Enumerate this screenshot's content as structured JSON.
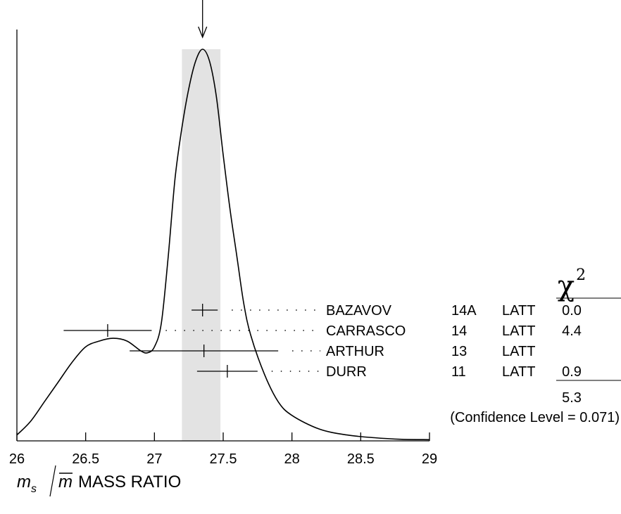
{
  "chart_data": {
    "type": "ideogram",
    "xlim": [
      26,
      29
    ],
    "ticks": {
      "major": [
        26,
        26.5,
        27,
        27.5,
        28,
        28.5,
        29
      ],
      "major_labels": [
        "26",
        "26.5",
        "27",
        "27.5",
        "28",
        "28.5",
        "29"
      ]
    },
    "xlabel": {
      "numerator": "m",
      "numerator_sub": "s",
      "denominator": "m",
      "text": "MASS RATIO"
    },
    "average": {
      "value": 27.35,
      "band": [
        27.2,
        27.48
      ]
    },
    "ideogram_curve": [
      [
        26.0,
        0.015
      ],
      [
        26.1,
        0.05
      ],
      [
        26.2,
        0.1
      ],
      [
        26.3,
        0.15
      ],
      [
        26.4,
        0.2
      ],
      [
        26.5,
        0.24
      ],
      [
        26.6,
        0.255
      ],
      [
        26.7,
        0.262
      ],
      [
        26.8,
        0.255
      ],
      [
        26.9,
        0.23
      ],
      [
        26.95,
        0.225
      ],
      [
        27.0,
        0.24
      ],
      [
        27.05,
        0.3
      ],
      [
        27.1,
        0.47
      ],
      [
        27.15,
        0.67
      ],
      [
        27.2,
        0.8
      ],
      [
        27.25,
        0.9
      ],
      [
        27.3,
        0.97
      ],
      [
        27.35,
        1.0
      ],
      [
        27.4,
        0.97
      ],
      [
        27.45,
        0.88
      ],
      [
        27.5,
        0.73
      ],
      [
        27.55,
        0.59
      ],
      [
        27.6,
        0.47
      ],
      [
        27.65,
        0.35
      ],
      [
        27.7,
        0.27
      ],
      [
        27.8,
        0.17
      ],
      [
        27.9,
        0.1
      ],
      [
        28.0,
        0.065
      ],
      [
        28.2,
        0.03
      ],
      [
        28.4,
        0.015
      ],
      [
        28.6,
        0.008
      ],
      [
        28.8,
        0.004
      ],
      [
        29.0,
        0.003
      ]
    ],
    "measurements": [
      {
        "value": 27.35,
        "err_low": 0.08,
        "err_high": 0.11,
        "author": "BAZAVOV",
        "year": "14A",
        "tech": "LATT",
        "chi2": "0.0"
      },
      {
        "value": 26.66,
        "err_low": 0.32,
        "err_high": 0.32,
        "author": "CARRASCO",
        "year": "14",
        "tech": "LATT",
        "chi2": "4.4"
      },
      {
        "value": 27.36,
        "err_low": 0.54,
        "err_high": 0.54,
        "author": "ARTHUR",
        "year": "13",
        "tech": "LATT",
        "chi2": ""
      },
      {
        "value": 27.53,
        "err_low": 0.22,
        "err_high": 0.22,
        "author": "DURR",
        "year": "11",
        "tech": "LATT",
        "chi2": "0.9"
      }
    ],
    "chi2_header": "χ",
    "chi2_header_sup": "2",
    "chi2_total": "5.3",
    "confidence_level": "(Confidence Level = 0.071)"
  }
}
